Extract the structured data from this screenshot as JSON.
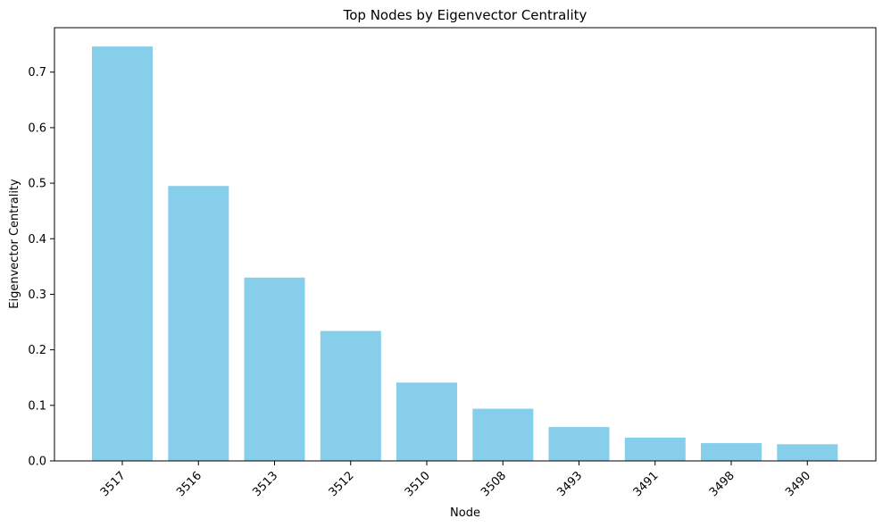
{
  "chart_data": {
    "type": "bar",
    "title": "Top Nodes by Eigenvector Centrality",
    "xlabel": "Node",
    "ylabel": "Eigenvector Centrality",
    "categories": [
      "3517",
      "3516",
      "3513",
      "3512",
      "3510",
      "3508",
      "3493",
      "3491",
      "3498",
      "3490"
    ],
    "values": [
      0.746,
      0.495,
      0.33,
      0.234,
      0.141,
      0.094,
      0.061,
      0.042,
      0.032,
      0.03
    ],
    "ylim": [
      0,
      0.78
    ],
    "yticks": [
      0.0,
      0.1,
      0.2,
      0.3,
      0.4,
      0.5,
      0.6,
      0.7
    ],
    "ytick_labels": [
      "0.0",
      "0.1",
      "0.2",
      "0.3",
      "0.4",
      "0.5",
      "0.6",
      "0.7"
    ],
    "bar_color": "#87ceeb",
    "grid": false,
    "xtick_rotation_deg": 45
  }
}
